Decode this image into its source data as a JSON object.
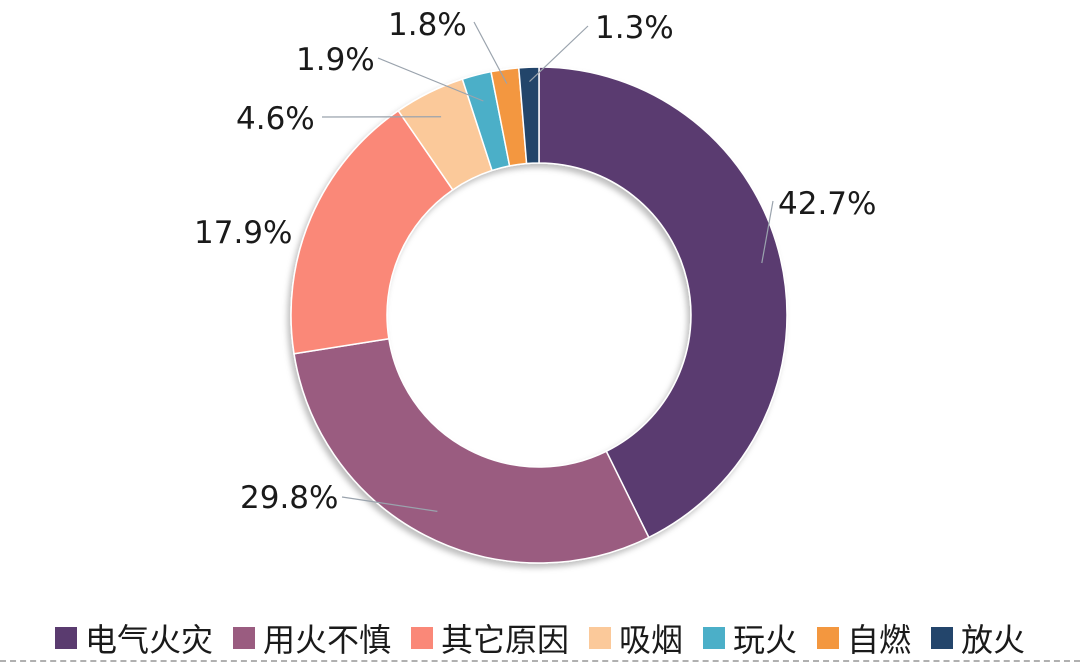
{
  "chart_data": {
    "type": "pie",
    "categories": [
      "电气火灾",
      "用火不慎",
      "其它原因",
      "吸烟",
      "玩火",
      "自燃",
      "放火"
    ],
    "values": [
      42.7,
      29.8,
      17.9,
      4.6,
      1.9,
      1.8,
      1.3
    ],
    "data_labels": [
      "42.7%",
      "29.8%",
      "17.9%",
      "4.6%",
      "1.9%",
      "1.8%",
      "1.3%"
    ],
    "colors": [
      "#5a3b6f",
      "#9a5c80",
      "#fa8878",
      "#fbc99a",
      "#4bafc8",
      "#f3973f",
      "#23456b"
    ],
    "donut": true,
    "legend_position": "bottom",
    "label_leader_lines": true
  },
  "legend": {
    "items": [
      {
        "label": "电气火灾",
        "color": "#5a3b6f"
      },
      {
        "label": "用火不慎",
        "color": "#9a5c80"
      },
      {
        "label": "其它原因",
        "color": "#fa8878"
      },
      {
        "label": "吸烟",
        "color": "#fbc99a"
      },
      {
        "label": "玩火",
        "color": "#4bafc8"
      },
      {
        "label": "自燃",
        "color": "#f3973f"
      },
      {
        "label": "放火",
        "color": "#23456b"
      }
    ]
  }
}
